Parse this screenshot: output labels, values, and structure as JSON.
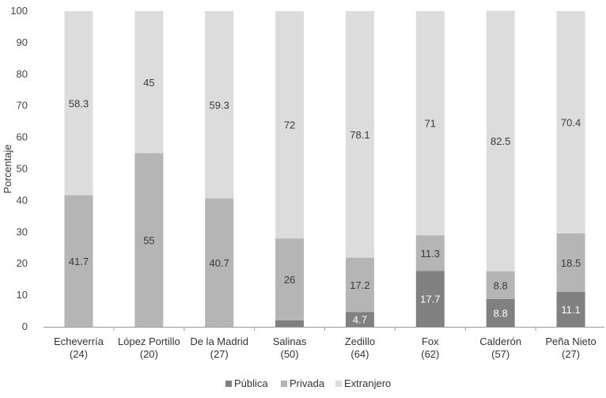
{
  "chart_data": {
    "type": "bar",
    "stacked": true,
    "ylabel": "Porcentaje",
    "ylim": [
      0,
      100
    ],
    "yticks": [
      0,
      10,
      20,
      30,
      40,
      50,
      60,
      70,
      80,
      90,
      100
    ],
    "categories": [
      [
        "Echeverría",
        "(24)"
      ],
      [
        "López Portillo",
        "(20)"
      ],
      [
        "De la Madrid",
        "(27)"
      ],
      [
        "Salinas",
        "(50)"
      ],
      [
        "Zedillo",
        "(64)"
      ],
      [
        "Fox",
        "(62)"
      ],
      [
        "Calderón",
        "(57)"
      ],
      [
        "Peña Nieto",
        "(27)"
      ]
    ],
    "series": [
      {
        "name": "Pública",
        "color": "#808080",
        "values": [
          0,
          0,
          0,
          2,
          4.7,
          17.7,
          8.8,
          11.1
        ],
        "labels": [
          "",
          "",
          "",
          "",
          "4.7",
          "17.7",
          "8.8",
          "11.1"
        ]
      },
      {
        "name": "Privada",
        "color": "#b5b5b5",
        "values": [
          41.7,
          55,
          40.7,
          26,
          17.2,
          11.3,
          8.8,
          18.5
        ],
        "labels": [
          "41.7",
          "55",
          "40.7",
          "26",
          "17.2",
          "11.3",
          "8.8",
          "18.5"
        ]
      },
      {
        "name": "Extranjero",
        "color": "#dcdcdc",
        "values": [
          58.3,
          45,
          59.3,
          72,
          78.1,
          71,
          82.5,
          70.4
        ],
        "labels": [
          "58.3",
          "45",
          "59.3",
          "72",
          "78.1",
          "71",
          "82.5",
          "70.4"
        ]
      }
    ],
    "legend_position": "bottom"
  }
}
